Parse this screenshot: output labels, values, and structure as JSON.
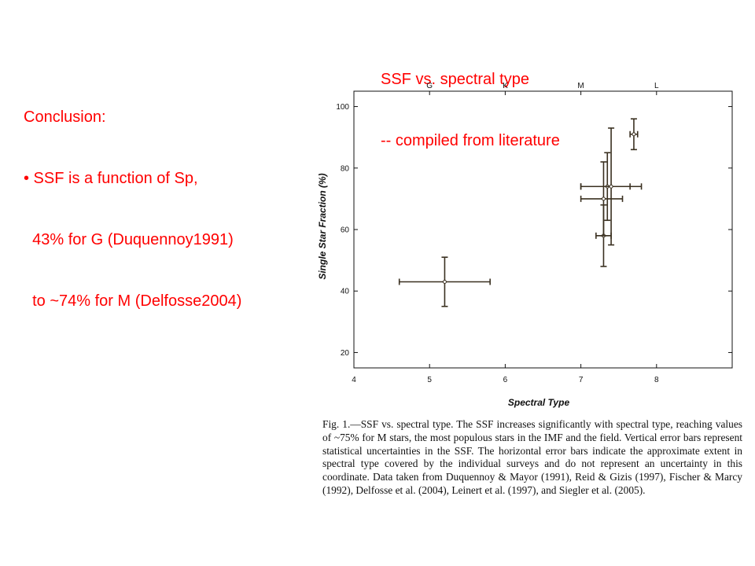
{
  "conclusion": {
    "lines": [
      "Conclusion:",
      "• SSF is a function of Sp,",
      "  43% for G (Duquennoy1991)",
      "  to ~74% for M (Delfosse2004)"
    ]
  },
  "ssf_title": {
    "lines": [
      "SSF vs. spectral type",
      "-- compiled from literature"
    ]
  },
  "figure": {
    "caption": "Fig. 1.—SSF vs. spectral type. The SSF increases significantly with spectral type, reaching values of ~75% for M stars, the most populous stars in the IMF and the field. Vertical error bars represent statistical uncertainties in the SSF. The horizontal error bars indicate the approximate extent in spectral type covered by the individual surveys and do not represent an uncertainty in this coordinate. Data taken from Duquennoy & Mayor (1991), Reid & Gizis (1997), Fischer & Marcy (1992), Delfosse et al. (2004), Leinert et al. (1997), and Siegler et al. (2005)."
  },
  "chart_data": {
    "type": "scatter",
    "xlabel": "Spectral Type",
    "ylabel": "Single Star Fraction (%)",
    "xlim": [
      4,
      9
    ],
    "ylim": [
      15,
      105
    ],
    "x_ticks": [
      4,
      5,
      6,
      7,
      8
    ],
    "y_ticks": [
      20,
      40,
      60,
      80,
      100
    ],
    "top_axis": {
      "labels": [
        "G",
        "K",
        "M",
        "L"
      ],
      "positions": [
        5,
        6,
        7,
        8
      ]
    },
    "grid": false,
    "points": [
      {
        "x": 5.2,
        "y": 43,
        "xerr": [
          4.6,
          5.8
        ],
        "yerr": [
          35,
          51
        ]
      },
      {
        "x": 7.3,
        "y": 58,
        "xerr": [
          7.2,
          7.4
        ],
        "yerr": [
          48,
          68
        ]
      },
      {
        "x": 7.3,
        "y": 70,
        "xerr": [
          7.0,
          7.55
        ],
        "yerr": [
          58,
          82
        ]
      },
      {
        "x": 7.35,
        "y": 74,
        "xerr": [
          7.0,
          7.65
        ],
        "yerr": [
          63,
          85
        ]
      },
      {
        "x": 7.4,
        "y": 74,
        "xerr": [
          7.0,
          7.8
        ],
        "yerr": [
          55,
          93
        ]
      },
      {
        "x": 7.7,
        "y": 91,
        "xerr": [
          7.65,
          7.75
        ],
        "yerr": [
          86,
          96
        ]
      }
    ]
  }
}
